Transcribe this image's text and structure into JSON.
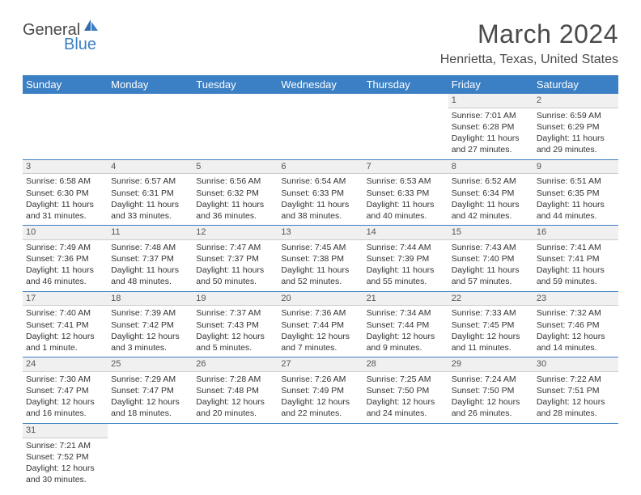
{
  "logo": {
    "main": "General",
    "accent": "Blue"
  },
  "title": "March 2024",
  "location": "Henrietta, Texas, United States",
  "colors": {
    "header_bg": "#3b7fc4",
    "text": "#4a4a4a",
    "cell_text": "#333333"
  },
  "weekdays": [
    "Sunday",
    "Monday",
    "Tuesday",
    "Wednesday",
    "Thursday",
    "Friday",
    "Saturday"
  ],
  "weeks": [
    [
      null,
      null,
      null,
      null,
      null,
      {
        "n": "1",
        "sr": "Sunrise: 7:01 AM",
        "ss": "Sunset: 6:28 PM",
        "d1": "Daylight: 11 hours",
        "d2": "and 27 minutes."
      },
      {
        "n": "2",
        "sr": "Sunrise: 6:59 AM",
        "ss": "Sunset: 6:29 PM",
        "d1": "Daylight: 11 hours",
        "d2": "and 29 minutes."
      }
    ],
    [
      {
        "n": "3",
        "sr": "Sunrise: 6:58 AM",
        "ss": "Sunset: 6:30 PM",
        "d1": "Daylight: 11 hours",
        "d2": "and 31 minutes."
      },
      {
        "n": "4",
        "sr": "Sunrise: 6:57 AM",
        "ss": "Sunset: 6:31 PM",
        "d1": "Daylight: 11 hours",
        "d2": "and 33 minutes."
      },
      {
        "n": "5",
        "sr": "Sunrise: 6:56 AM",
        "ss": "Sunset: 6:32 PM",
        "d1": "Daylight: 11 hours",
        "d2": "and 36 minutes."
      },
      {
        "n": "6",
        "sr": "Sunrise: 6:54 AM",
        "ss": "Sunset: 6:33 PM",
        "d1": "Daylight: 11 hours",
        "d2": "and 38 minutes."
      },
      {
        "n": "7",
        "sr": "Sunrise: 6:53 AM",
        "ss": "Sunset: 6:33 PM",
        "d1": "Daylight: 11 hours",
        "d2": "and 40 minutes."
      },
      {
        "n": "8",
        "sr": "Sunrise: 6:52 AM",
        "ss": "Sunset: 6:34 PM",
        "d1": "Daylight: 11 hours",
        "d2": "and 42 minutes."
      },
      {
        "n": "9",
        "sr": "Sunrise: 6:51 AM",
        "ss": "Sunset: 6:35 PM",
        "d1": "Daylight: 11 hours",
        "d2": "and 44 minutes."
      }
    ],
    [
      {
        "n": "10",
        "sr": "Sunrise: 7:49 AM",
        "ss": "Sunset: 7:36 PM",
        "d1": "Daylight: 11 hours",
        "d2": "and 46 minutes."
      },
      {
        "n": "11",
        "sr": "Sunrise: 7:48 AM",
        "ss": "Sunset: 7:37 PM",
        "d1": "Daylight: 11 hours",
        "d2": "and 48 minutes."
      },
      {
        "n": "12",
        "sr": "Sunrise: 7:47 AM",
        "ss": "Sunset: 7:37 PM",
        "d1": "Daylight: 11 hours",
        "d2": "and 50 minutes."
      },
      {
        "n": "13",
        "sr": "Sunrise: 7:45 AM",
        "ss": "Sunset: 7:38 PM",
        "d1": "Daylight: 11 hours",
        "d2": "and 52 minutes."
      },
      {
        "n": "14",
        "sr": "Sunrise: 7:44 AM",
        "ss": "Sunset: 7:39 PM",
        "d1": "Daylight: 11 hours",
        "d2": "and 55 minutes."
      },
      {
        "n": "15",
        "sr": "Sunrise: 7:43 AM",
        "ss": "Sunset: 7:40 PM",
        "d1": "Daylight: 11 hours",
        "d2": "and 57 minutes."
      },
      {
        "n": "16",
        "sr": "Sunrise: 7:41 AM",
        "ss": "Sunset: 7:41 PM",
        "d1": "Daylight: 11 hours",
        "d2": "and 59 minutes."
      }
    ],
    [
      {
        "n": "17",
        "sr": "Sunrise: 7:40 AM",
        "ss": "Sunset: 7:41 PM",
        "d1": "Daylight: 12 hours",
        "d2": "and 1 minute."
      },
      {
        "n": "18",
        "sr": "Sunrise: 7:39 AM",
        "ss": "Sunset: 7:42 PM",
        "d1": "Daylight: 12 hours",
        "d2": "and 3 minutes."
      },
      {
        "n": "19",
        "sr": "Sunrise: 7:37 AM",
        "ss": "Sunset: 7:43 PM",
        "d1": "Daylight: 12 hours",
        "d2": "and 5 minutes."
      },
      {
        "n": "20",
        "sr": "Sunrise: 7:36 AM",
        "ss": "Sunset: 7:44 PM",
        "d1": "Daylight: 12 hours",
        "d2": "and 7 minutes."
      },
      {
        "n": "21",
        "sr": "Sunrise: 7:34 AM",
        "ss": "Sunset: 7:44 PM",
        "d1": "Daylight: 12 hours",
        "d2": "and 9 minutes."
      },
      {
        "n": "22",
        "sr": "Sunrise: 7:33 AM",
        "ss": "Sunset: 7:45 PM",
        "d1": "Daylight: 12 hours",
        "d2": "and 11 minutes."
      },
      {
        "n": "23",
        "sr": "Sunrise: 7:32 AM",
        "ss": "Sunset: 7:46 PM",
        "d1": "Daylight: 12 hours",
        "d2": "and 14 minutes."
      }
    ],
    [
      {
        "n": "24",
        "sr": "Sunrise: 7:30 AM",
        "ss": "Sunset: 7:47 PM",
        "d1": "Daylight: 12 hours",
        "d2": "and 16 minutes."
      },
      {
        "n": "25",
        "sr": "Sunrise: 7:29 AM",
        "ss": "Sunset: 7:47 PM",
        "d1": "Daylight: 12 hours",
        "d2": "and 18 minutes."
      },
      {
        "n": "26",
        "sr": "Sunrise: 7:28 AM",
        "ss": "Sunset: 7:48 PM",
        "d1": "Daylight: 12 hours",
        "d2": "and 20 minutes."
      },
      {
        "n": "27",
        "sr": "Sunrise: 7:26 AM",
        "ss": "Sunset: 7:49 PM",
        "d1": "Daylight: 12 hours",
        "d2": "and 22 minutes."
      },
      {
        "n": "28",
        "sr": "Sunrise: 7:25 AM",
        "ss": "Sunset: 7:50 PM",
        "d1": "Daylight: 12 hours",
        "d2": "and 24 minutes."
      },
      {
        "n": "29",
        "sr": "Sunrise: 7:24 AM",
        "ss": "Sunset: 7:50 PM",
        "d1": "Daylight: 12 hours",
        "d2": "and 26 minutes."
      },
      {
        "n": "30",
        "sr": "Sunrise: 7:22 AM",
        "ss": "Sunset: 7:51 PM",
        "d1": "Daylight: 12 hours",
        "d2": "and 28 minutes."
      }
    ],
    [
      {
        "n": "31",
        "sr": "Sunrise: 7:21 AM",
        "ss": "Sunset: 7:52 PM",
        "d1": "Daylight: 12 hours",
        "d2": "and 30 minutes."
      },
      null,
      null,
      null,
      null,
      null,
      null
    ]
  ]
}
